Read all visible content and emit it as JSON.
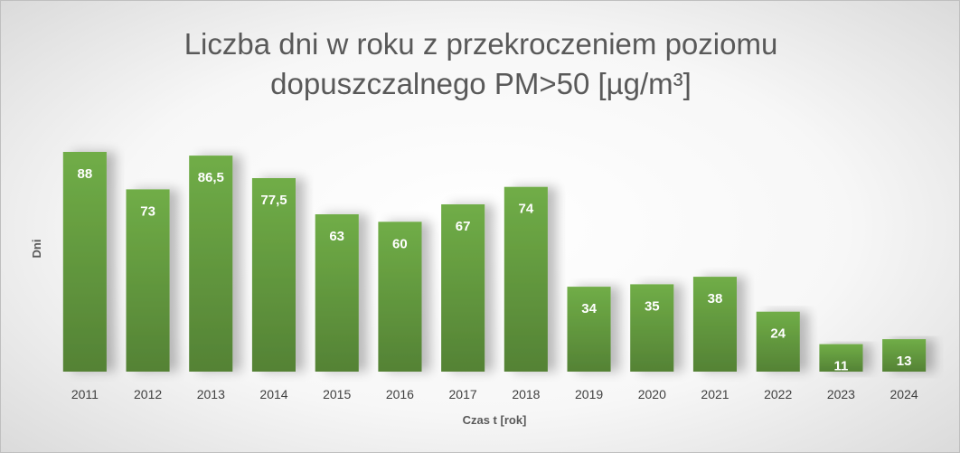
{
  "chart_data": {
    "type": "bar",
    "title_lines": [
      "Liczba dni w roku z przekroczeniem poziomu",
      "dopuszczalnego PM>50 [µg/m³]"
    ],
    "xlabel": "Czas t [rok]",
    "ylabel": "Dni",
    "categories": [
      "2011",
      "2012",
      "2013",
      "2014",
      "2015",
      "2016",
      "2017",
      "2018",
      "2019",
      "2020",
      "2021",
      "2022",
      "2023",
      "2024"
    ],
    "values": [
      88,
      73,
      86.5,
      77.5,
      63,
      60,
      67,
      74,
      34,
      35,
      38,
      24,
      11,
      13
    ],
    "value_labels": [
      "88",
      "73",
      "86,5",
      "77,5",
      "63",
      "60",
      "67",
      "74",
      "34",
      "35",
      "38",
      "24",
      "11",
      "13"
    ],
    "ylim": [
      0,
      88
    ],
    "grid": false,
    "legend": "none",
    "colors": {
      "bar_top": "#70ad47",
      "bar_bottom": "#548235",
      "label": "#ffffff"
    }
  }
}
